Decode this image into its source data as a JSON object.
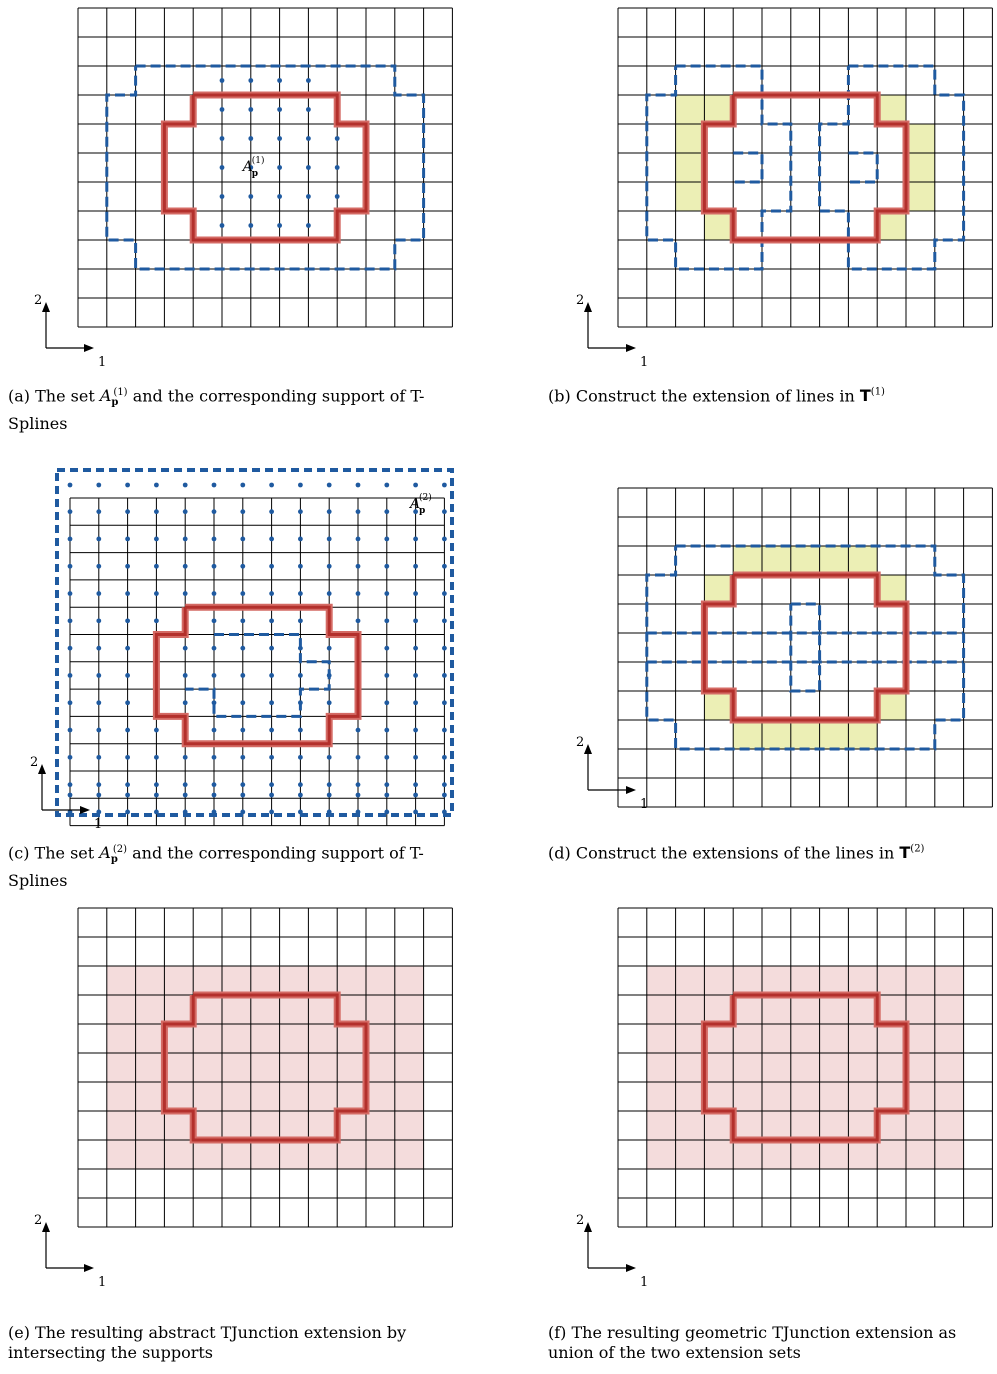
{
  "figure": {
    "colors": {
      "grid": "#000000",
      "red_boundary": "#b3302c",
      "red_boundary_fill": "#d46a64",
      "blue_dashed": "#1f5aa0",
      "blue_dot": "#1f5aa0",
      "yellow_fill": "#ecefb5",
      "pink_fill": "#f4dcdc"
    },
    "axes": {
      "dir1": "1",
      "dir2": "2"
    },
    "panels": [
      {
        "id": "a",
        "caption": {
          "label": "(a)",
          "text_before": "The set",
          "symbol": "A",
          "symbol_sub": "p",
          "symbol_sup": "(1)",
          "text_after": "and the corresponding support of T-Splines"
        },
        "annotation": {
          "symbol": "A",
          "sub": "p",
          "sup": "(1)"
        }
      },
      {
        "id": "b",
        "caption": {
          "label": "(b)",
          "text_before": "Construct the extension of lines in",
          "symbol": "T",
          "symbol_sub": "",
          "symbol_sup": "(1)",
          "text_after": ""
        }
      },
      {
        "id": "c",
        "caption": {
          "label": "(c)",
          "text_before": "The set",
          "symbol": "A",
          "symbol_sub": "p",
          "symbol_sup": "(2)",
          "text_after": "and the corresponding support of T-Splines"
        },
        "annotation": {
          "symbol": "A",
          "sub": "p",
          "sup": "(2)"
        }
      },
      {
        "id": "d",
        "caption": {
          "label": "(d)",
          "text_before": "Construct the extensions of the lines in",
          "symbol": "T",
          "symbol_sub": "",
          "symbol_sup": "(2)",
          "text_after": ""
        }
      },
      {
        "id": "e",
        "caption": {
          "label": "(e)",
          "text_before": "The resulting abstract TJunction extension by intersecting the supports",
          "symbol": "",
          "symbol_sub": "",
          "symbol_sup": "",
          "text_after": ""
        }
      },
      {
        "id": "f",
        "caption": {
          "label": "(f)",
          "text_before": "The resulting geometric TJunction extension as union of the two extension sets",
          "symbol": "",
          "symbol_sub": "",
          "symbol_sup": "",
          "text_after": ""
        }
      }
    ]
  }
}
